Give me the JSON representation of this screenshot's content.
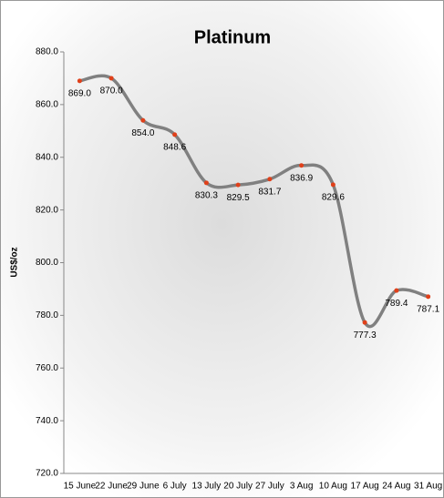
{
  "chart_data": {
    "type": "line",
    "title": "Platinum",
    "y_label": "US$/oz",
    "categories": [
      "15 June",
      "22 June",
      "29 June",
      "6 July",
      "13 July",
      "20 July",
      "27 July",
      "3 Aug",
      "10 Aug",
      "17 Aug",
      "24 Aug",
      "31 Aug"
    ],
    "series": [
      {
        "name": "Platinum",
        "color": "#808080",
        "marker_color": "#e0401a",
        "values": [
          869.0,
          870.0,
          854.0,
          848.6,
          830.3,
          829.5,
          831.7,
          836.9,
          829.6,
          777.3,
          789.4,
          787.1
        ],
        "value_labels": [
          "869.0",
          "870.0",
          "854.0",
          "848.6",
          "830.3",
          "829.5",
          "831.7",
          "836.9",
          "829.6",
          "777.3",
          "789.4",
          "787.1"
        ]
      }
    ],
    "ylim": [
      720,
      880
    ],
    "yticks": [
      {
        "value": 720,
        "label": "720.0"
      },
      {
        "value": 740,
        "label": "740.0"
      },
      {
        "value": 760,
        "label": "760.0"
      },
      {
        "value": 780,
        "label": "780.0"
      },
      {
        "value": 800,
        "label": "800.0"
      },
      {
        "value": 820,
        "label": "820.0"
      },
      {
        "value": 840,
        "label": "840.0"
      },
      {
        "value": 860,
        "label": "860.0"
      },
      {
        "value": 880,
        "label": "880.0"
      }
    ],
    "grid": false
  }
}
